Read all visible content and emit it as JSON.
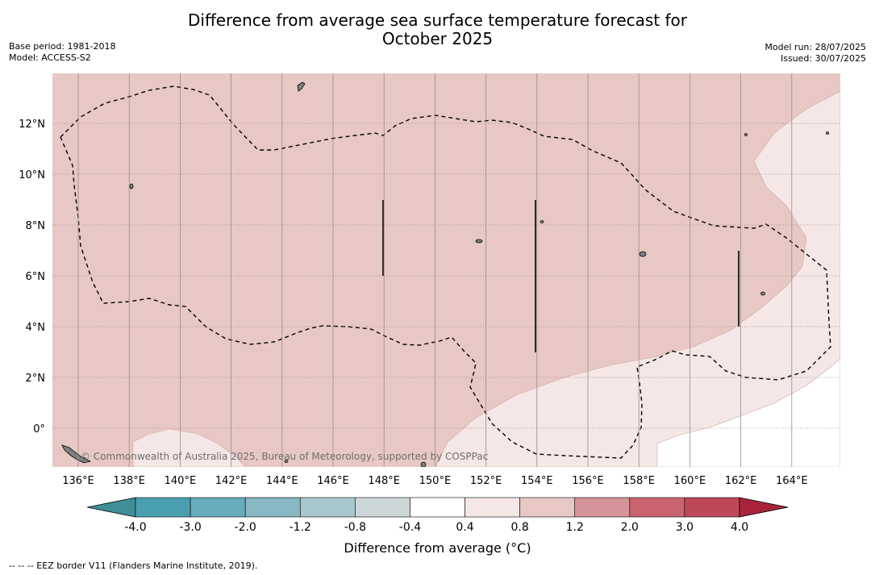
{
  "title_line1": "Difference from average sea surface temperature forecast for",
  "title_line2": "October 2025",
  "base_period": "Base period: 1981-2018",
  "model": "Model: ACCESS-S2",
  "model_run": "Model run: 28/07/2025",
  "issued": "Issued: 30/07/2025",
  "credit": "© Commonwealth of Australia 2025, Bureau of Meteorology, supported by COSPPac",
  "lon_labels": [
    "136°E",
    "138°E",
    "140°E",
    "142°E",
    "144°E",
    "146°E",
    "148°E",
    "150°E",
    "152°E",
    "154°E",
    "156°E",
    "158°E",
    "160°E",
    "162°E",
    "164°E"
  ],
  "lat_labels": [
    "12°N",
    "10°N",
    "8°N",
    "6°N",
    "4°N",
    "2°N",
    "0°"
  ],
  "colorbar": {
    "ticks": [
      "-4.0",
      "-3.0",
      "-2.0",
      "-1.2",
      "-0.8",
      "-0.4",
      "0.4",
      "0.8",
      "1.2",
      "2.0",
      "3.0",
      "4.0"
    ],
    "colors": [
      "#3f8f98",
      "#4aa0b0",
      "#67adbb",
      "#87b8c3",
      "#a8c7cc",
      "#cdd6d7",
      "#ffffff",
      "#f5e7e5",
      "#e8c8c4",
      "#d5939a",
      "#c96470",
      "#be4858",
      "#a8233c"
    ],
    "label": "Difference from average (°C)"
  },
  "zone_colors": {
    "warm_0_8_1_2": "#e8c8c4",
    "warm_0_4_0_8": "#f5e7e5",
    "neutral": "#ffffff"
  },
  "footnote": "--  --  -- EEZ border V11 (Flanders Marine Institute, 2019)."
}
